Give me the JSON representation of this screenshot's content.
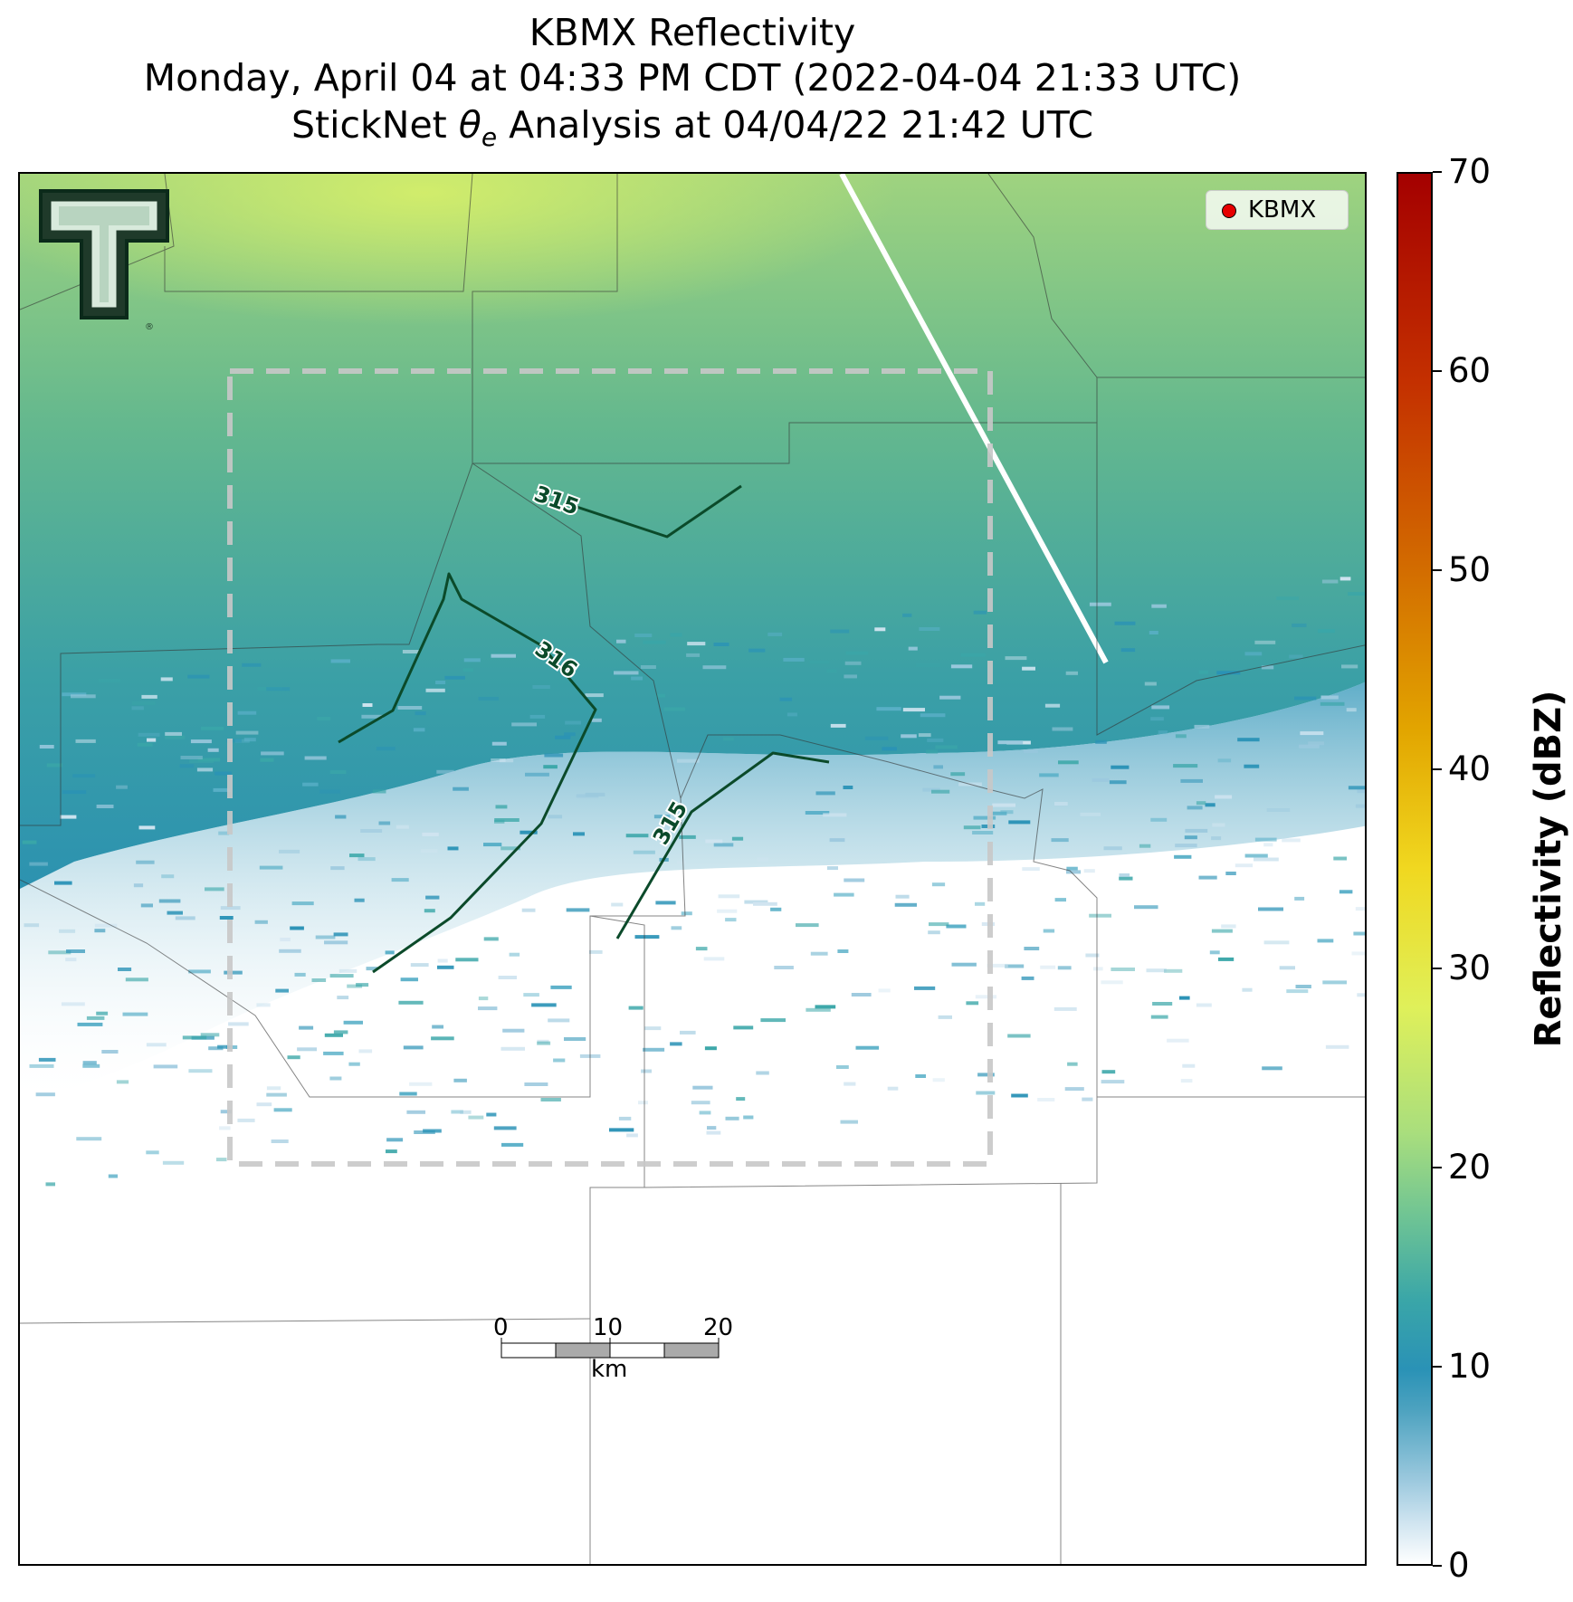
{
  "title": {
    "line1": "KBMX Reflectivity",
    "line2": "Monday, April 04 at 04:33 PM CDT (2022-04-04 21:33 UTC)",
    "line3": "StickNet θe Analysis at 04/04/22 21:42 UTC"
  },
  "legend": {
    "label": "KBMX",
    "marker_color": "#e60000"
  },
  "logo": {
    "name": "Texas Tech Double T"
  },
  "contours": [
    {
      "label": "315"
    },
    {
      "label": "316"
    },
    {
      "label": "315"
    }
  ],
  "contour_color": "#0b4a2a",
  "analysis_box_color": "#c8c8c8",
  "colorbar": {
    "label": "Reflectivity (dBZ)",
    "min": 0,
    "max": 70,
    "ticks": [
      "0",
      "10",
      "20",
      "30",
      "40",
      "50",
      "60",
      "70"
    ]
  },
  "scalebar": {
    "labels": [
      "0",
      "10",
      "20"
    ],
    "unit": "km"
  }
}
